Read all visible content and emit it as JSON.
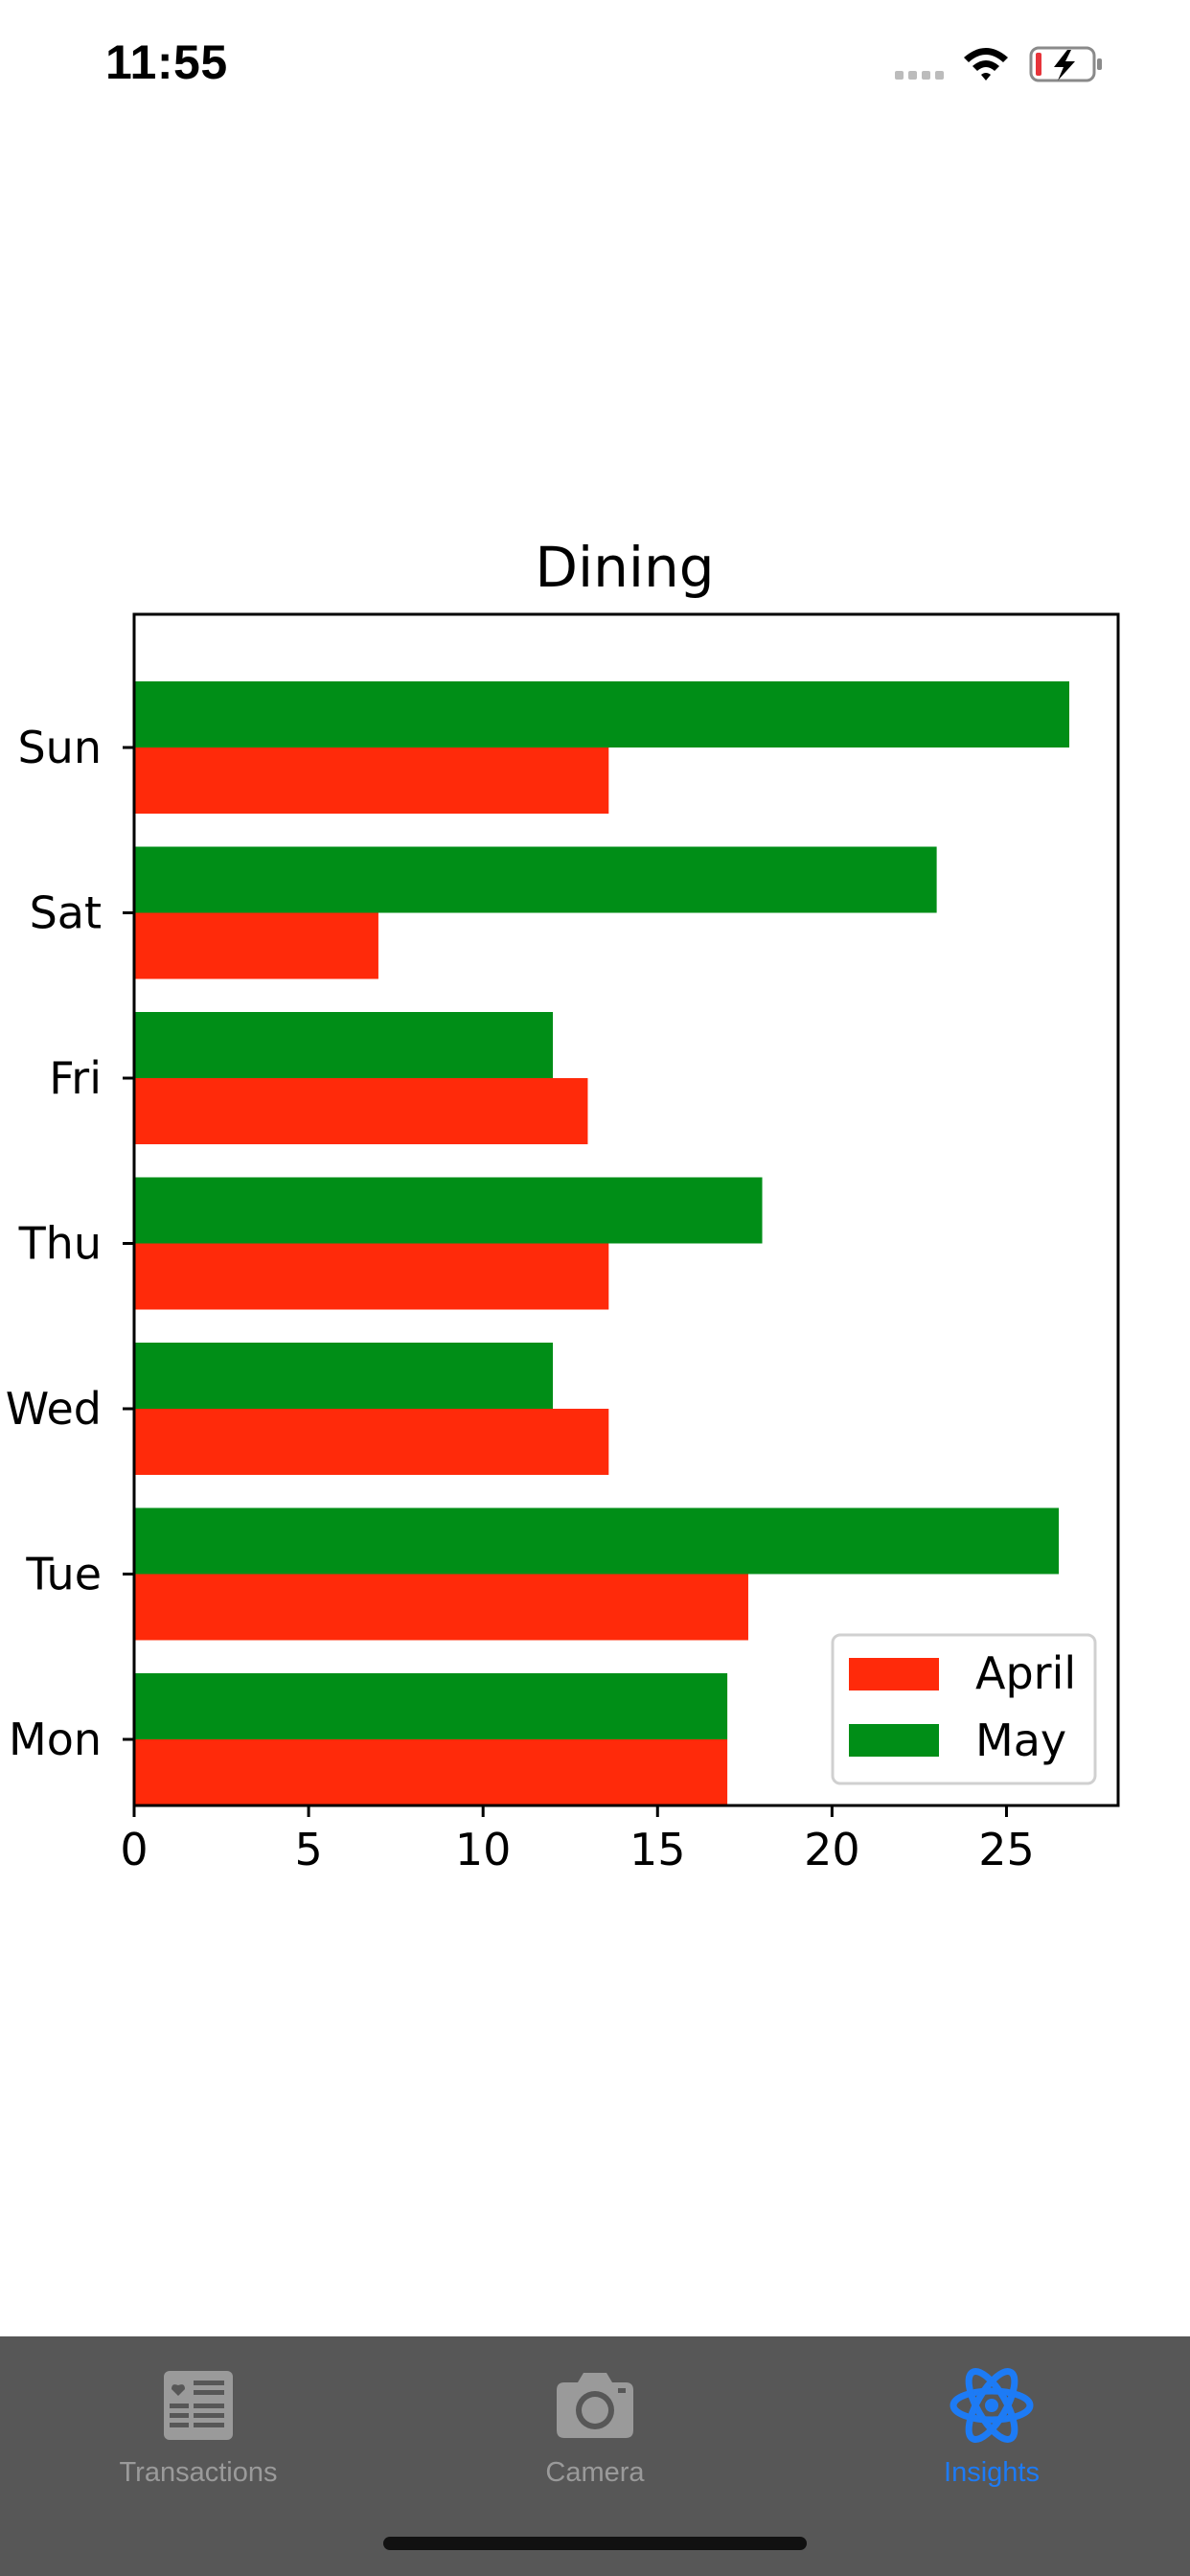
{
  "status_bar": {
    "time": "11:55",
    "icons": [
      "signal-dots-icon",
      "wifi-icon",
      "battery-charging-icon"
    ],
    "battery_color": "#e7343a"
  },
  "chart_data": {
    "type": "bar",
    "orientation": "horizontal",
    "title": "Dining",
    "xlabel": "",
    "ylabel": "",
    "categories": [
      "Mon",
      "Tue",
      "Wed",
      "Thu",
      "Fri",
      "Sat",
      "Sun"
    ],
    "series": [
      {
        "name": "April",
        "color": "#ff2a0a",
        "values": [
          17,
          17.6,
          13.6,
          13.6,
          13.0,
          7.0,
          13.6
        ]
      },
      {
        "name": "May",
        "color": "#008e17",
        "values": [
          17,
          26.5,
          12.0,
          18.0,
          12.0,
          23.0,
          26.8
        ]
      }
    ],
    "xlim": [
      0,
      28.2
    ],
    "xticks": [
      0,
      5,
      10,
      15,
      20,
      25
    ],
    "grid": false,
    "legend": "bottom-right"
  },
  "tab_bar": {
    "background": "#575757",
    "active_color": "#1d7bf5",
    "inactive_color": "#9a9a9a",
    "tabs": [
      {
        "label": "Transactions",
        "icon": "news-icon",
        "active": false
      },
      {
        "label": "Camera",
        "icon": "camera-icon",
        "active": false
      },
      {
        "label": "Insights",
        "icon": "atom-icon",
        "active": true
      }
    ]
  }
}
